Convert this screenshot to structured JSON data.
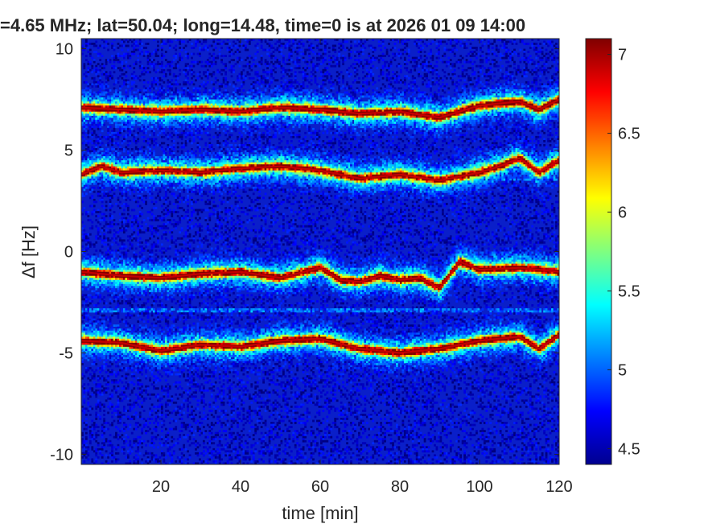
{
  "chart_data": {
    "type": "heatmap",
    "title": "=4.65 MHz;  lat=50.04; long=14.48, time=0 is at 2026 01 09 14:00",
    "xlabel": "time [min]",
    "ylabel": "Δf [Hz]",
    "xlim": [
      0,
      120
    ],
    "ylim": [
      -10.5,
      10.5
    ],
    "x_ticks": [
      "20",
      "40",
      "60",
      "80",
      "100",
      "120"
    ],
    "x_tick_values": [
      20,
      40,
      60,
      80,
      100,
      120
    ],
    "y_ticks": [
      "10",
      "5",
      "0",
      "-5",
      "-10"
    ],
    "y_tick_values": [
      10,
      5,
      0,
      -5,
      -10
    ],
    "colorbar": {
      "range": [
        4.4,
        7.1
      ],
      "ticks": [
        "4.5",
        "5",
        "5.5",
        "6",
        "6.5",
        "7"
      ],
      "tick_values": [
        4.5,
        5,
        5.5,
        6,
        6.5,
        7
      ],
      "colormap": "jet"
    },
    "background_level": 4.6,
    "traces": [
      {
        "name": "",
        "time": [
          0,
          10,
          20,
          30,
          40,
          50,
          60,
          70,
          80,
          90,
          100,
          110,
          115,
          120
        ],
        "df_hz": [
          7.1,
          7.0,
          6.9,
          7.0,
          6.9,
          7.1,
          7.0,
          6.8,
          6.9,
          6.6,
          7.2,
          7.4,
          7.0,
          7.5
        ],
        "peak_level": 7.0
      },
      {
        "name": "",
        "time": [
          0,
          5,
          10,
          20,
          30,
          40,
          50,
          60,
          70,
          80,
          90,
          100,
          105,
          110,
          115,
          120
        ],
        "df_hz": [
          3.8,
          4.2,
          3.9,
          4.0,
          3.9,
          4.1,
          4.2,
          4.0,
          3.6,
          3.8,
          3.5,
          3.9,
          4.2,
          4.6,
          3.9,
          4.5
        ],
        "peak_level": 6.9
      },
      {
        "name": "",
        "time": [
          0,
          10,
          20,
          30,
          40,
          50,
          60,
          65,
          70,
          75,
          80,
          85,
          90,
          95,
          100,
          110,
          120
        ],
        "df_hz": [
          -1.0,
          -1.2,
          -1.3,
          -1.1,
          -1.0,
          -1.3,
          -0.8,
          -1.4,
          -1.5,
          -1.2,
          -1.4,
          -1.3,
          -1.8,
          -0.5,
          -0.9,
          -0.8,
          -1.0
        ],
        "peak_level": 7.0
      },
      {
        "name": "",
        "time": [
          0,
          10,
          20,
          30,
          40,
          50,
          60,
          70,
          80,
          90,
          100,
          110,
          115,
          120
        ],
        "df_hz": [
          -4.4,
          -4.5,
          -4.9,
          -4.6,
          -4.7,
          -4.4,
          -4.3,
          -4.8,
          -5.0,
          -4.8,
          -4.4,
          -4.2,
          -4.8,
          -4.1
        ],
        "peak_level": 7.0
      }
    ],
    "faint_lines_df_hz": [
      -2.9,
      3.6
    ]
  }
}
